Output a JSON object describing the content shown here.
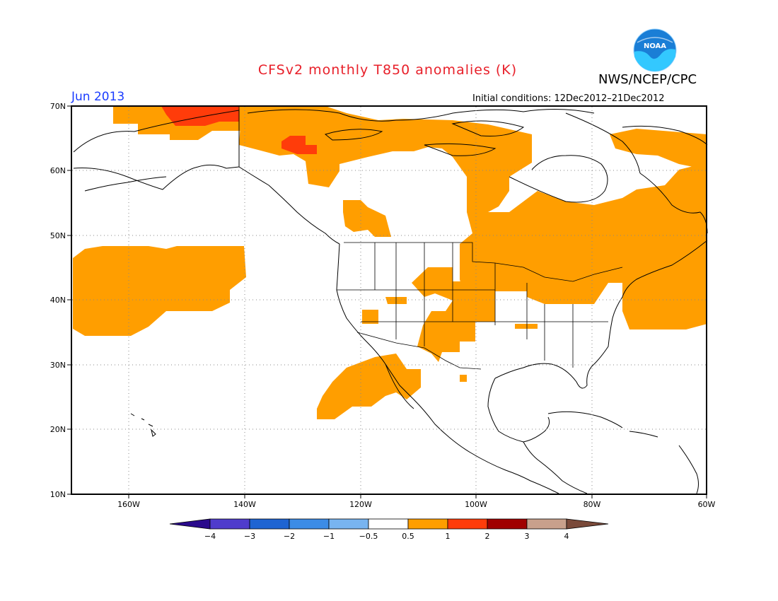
{
  "title": "CFSv2 monthly T850 anomalies (K)",
  "agency": "NWS/NCEP/CPC",
  "logo_text": "NOAA",
  "valid_month": "Jun 2013",
  "initial_conditions": "Initial conditions: 12Dec2012–21Dec2012",
  "lat_labels": [
    "70N",
    "60N",
    "50N",
    "40N",
    "30N",
    "20N",
    "10N"
  ],
  "lon_labels": [
    "160W",
    "140W",
    "120W",
    "100W",
    "80W",
    "60W"
  ],
  "colorbar": {
    "labels": [
      "−4",
      "−3",
      "−2",
      "−1",
      "−0.5",
      "0.5",
      "1",
      "2",
      "3",
      "4"
    ],
    "colors": [
      "#2a0a8c",
      "#4f3ccc",
      "#1e64d2",
      "#3c8ce6",
      "#78b4f0",
      "#ffffff",
      "#ff9e00",
      "#ff3c0a",
      "#a00000",
      "#c8a08c",
      "#7a4a3a"
    ]
  },
  "map": {
    "lon_range": [
      "170W",
      "60W"
    ],
    "lat_range": [
      "10N",
      "70N"
    ],
    "anomaly_colors": {
      "0.5-1": "#ff9e00",
      "1-2": "#ff3c0a"
    }
  }
}
